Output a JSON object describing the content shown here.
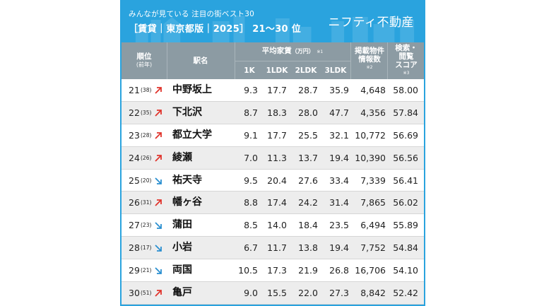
{
  "header": {
    "subtitle": "みんなが見ている 注目の街ベスト30",
    "title": "［賃貸｜東京都版｜2025］ 21〜30 位",
    "brand": "ニフティ不動産"
  },
  "columns": {
    "rank": "順位",
    "rank_sub": "(前年)",
    "station": "駅名",
    "avg_rent": "平均家賃",
    "avg_rent_unit": "（万円）",
    "avg_rent_note": "※1",
    "k1": "1K",
    "ldk1": "1LDK",
    "ldk2": "2LDK",
    "ldk3": "3LDK",
    "listings_l1": "掲載物件",
    "listings_l2": "情報数",
    "listings_note": "※2",
    "score_l1": "検索・",
    "score_l2": "閲覧",
    "score_l3": "スコア",
    "score_note": "※3"
  },
  "colors": {
    "accent": "#2aa3de",
    "header_gray": "#8c9ba3",
    "up": "#e0342c",
    "down": "#2a8fd0"
  },
  "rows": [
    {
      "rank": "21",
      "prev": "(38)",
      "trend": "up",
      "trend_icon": "arrow-up-right-icon",
      "station": "中野坂上",
      "k1": "9.3",
      "l1": "17.7",
      "l2": "28.7",
      "l3": "35.9",
      "listings": "4,648",
      "score": "58.00"
    },
    {
      "rank": "22",
      "prev": "(35)",
      "trend": "up",
      "trend_icon": "arrow-up-right-icon",
      "station": "下北沢",
      "k1": "8.7",
      "l1": "18.3",
      "l2": "28.0",
      "l3": "47.7",
      "listings": "4,356",
      "score": "57.84"
    },
    {
      "rank": "23",
      "prev": "(28)",
      "trend": "up",
      "trend_icon": "arrow-up-right-icon",
      "station": "都立大学",
      "k1": "9.1",
      "l1": "17.7",
      "l2": "25.5",
      "l3": "32.1",
      "listings": "10,772",
      "score": "56.69"
    },
    {
      "rank": "24",
      "prev": "(26)",
      "trend": "up",
      "trend_icon": "arrow-up-right-icon",
      "station": "綾瀬",
      "k1": "7.0",
      "l1": "11.3",
      "l2": "13.7",
      "l3": "19.4",
      "listings": "10,390",
      "score": "56.56"
    },
    {
      "rank": "25",
      "prev": "(20)",
      "trend": "down",
      "trend_icon": "arrow-down-right-icon",
      "station": "祐天寺",
      "k1": "9.5",
      "l1": "20.4",
      "l2": "27.6",
      "l3": "33.4",
      "listings": "7,339",
      "score": "56.41"
    },
    {
      "rank": "26",
      "prev": "(31)",
      "trend": "up",
      "trend_icon": "arrow-up-right-icon",
      "station": "幡ヶ谷",
      "k1": "8.8",
      "l1": "17.4",
      "l2": "24.2",
      "l3": "31.4",
      "listings": "7,865",
      "score": "56.02"
    },
    {
      "rank": "27",
      "prev": "(23)",
      "trend": "down",
      "trend_icon": "arrow-down-right-icon",
      "station": "蒲田",
      "k1": "8.5",
      "l1": "14.0",
      "l2": "18.4",
      "l3": "23.5",
      "listings": "6,494",
      "score": "55.89"
    },
    {
      "rank": "28",
      "prev": "(17)",
      "trend": "down",
      "trend_icon": "arrow-down-right-icon",
      "station": "小岩",
      "k1": "6.7",
      "l1": "11.7",
      "l2": "13.8",
      "l3": "19.4",
      "listings": "7,752",
      "score": "54.84"
    },
    {
      "rank": "29",
      "prev": "(21)",
      "trend": "down",
      "trend_icon": "arrow-down-right-icon",
      "station": "両国",
      "k1": "10.5",
      "l1": "17.3",
      "l2": "21.9",
      "l3": "26.8",
      "listings": "16,706",
      "score": "54.10"
    },
    {
      "rank": "30",
      "prev": "(51)",
      "trend": "up",
      "trend_icon": "arrow-up-right-icon",
      "station": "亀戸",
      "k1": "9.0",
      "l1": "15.5",
      "l2": "22.0",
      "l3": "27.3",
      "listings": "8,842",
      "score": "52.42"
    }
  ]
}
